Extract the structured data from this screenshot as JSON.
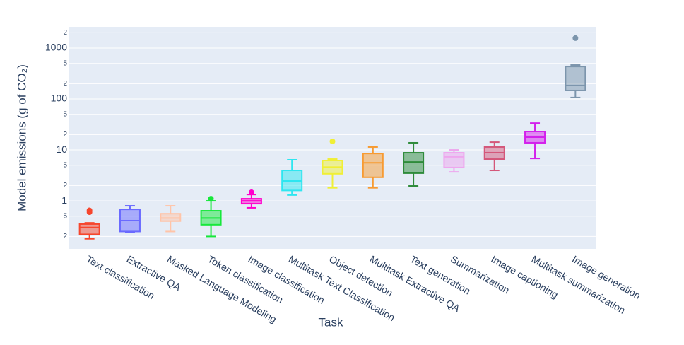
{
  "chart_data": {
    "type": "box",
    "log_y": true,
    "grid": true,
    "xlabel": "Task",
    "ylabel": "Model emissions (g of CO₂)",
    "ylim": [
      0.114,
      2610
    ],
    "yticks": [
      {
        "value": 0.2,
        "label": "2"
      },
      {
        "value": 0.5,
        "label": "5"
      },
      1,
      {
        "value": 2,
        "label": "2"
      },
      {
        "value": 5,
        "label": "5"
      },
      10,
      {
        "value": 20,
        "label": "2"
      },
      {
        "value": 50,
        "label": "5"
      },
      100,
      {
        "value": 200,
        "label": "2"
      },
      {
        "value": 500,
        "label": "5"
      },
      1000,
      {
        "value": 2000,
        "label": "2"
      }
    ],
    "categories": [
      "Text classification",
      "Extractive QA",
      "Masked Language Modeling",
      "Token classification",
      "Image classification",
      "Multitask Text Classification",
      "Object detection",
      "Multitask Extractive QA",
      "Text generation",
      "Summarization",
      "Image captioning",
      "Multitask summarization",
      "Image generation"
    ],
    "boxes": [
      {
        "min": 0.18,
        "q1": 0.22,
        "median": 0.3,
        "q3": 0.35,
        "max": 0.37,
        "outliers": [
          0.6,
          0.65
        ],
        "color": "#f6462d"
      },
      {
        "min": 0.24,
        "q1": 0.25,
        "median": 0.41,
        "q3": 0.68,
        "max": 0.8,
        "outliers": [],
        "color": "#6a6aff"
      },
      {
        "min": 0.25,
        "q1": 0.4,
        "median": 0.46,
        "q3": 0.56,
        "max": 0.8,
        "outliers": [],
        "color": "#ffc4a8"
      },
      {
        "min": 0.2,
        "q1": 0.34,
        "median": 0.46,
        "q3": 0.64,
        "max": 1.0,
        "outliers": [
          1.1
        ],
        "color": "#17e83b"
      },
      {
        "min": 0.73,
        "q1": 0.88,
        "median": 1.0,
        "q3": 1.1,
        "max": 1.33,
        "outliers": [
          1.47
        ],
        "color": "#ff00cc"
      },
      {
        "min": 1.3,
        "q1": 1.6,
        "median": 2.45,
        "q3": 3.96,
        "max": 6.4,
        "outliers": [],
        "color": "#2ee6f0"
      },
      {
        "min": 1.8,
        "q1": 3.4,
        "median": 4.6,
        "q3": 6.2,
        "max": 6.6,
        "outliers": [
          14.7
        ],
        "color": "#f0ef35"
      },
      {
        "min": 1.8,
        "q1": 2.9,
        "median": 5.6,
        "q3": 8.5,
        "max": 11.4,
        "outliers": [],
        "color": "#f79b32"
      },
      {
        "min": 1.96,
        "q1": 3.5,
        "median": 5.8,
        "q3": 8.8,
        "max": 13.8,
        "outliers": [],
        "color": "#2e8b3a"
      },
      {
        "min": 3.7,
        "q1": 4.5,
        "median": 7.3,
        "q3": 8.8,
        "max": 10,
        "outliers": [],
        "color": "#eea6ee"
      },
      {
        "min": 3.96,
        "q1": 6.6,
        "median": 8.8,
        "q3": 11.4,
        "max": 14.2,
        "outliers": [],
        "color": "#d4577a"
      },
      {
        "min": 6.8,
        "q1": 13.8,
        "median": 17.8,
        "q3": 23,
        "max": 33.6,
        "outliers": [],
        "color": "#d321ec"
      },
      {
        "min": 107,
        "q1": 147,
        "median": 184,
        "q3": 434,
        "max": 464,
        "outliers": [
          1570
        ],
        "color": "#7c95ac"
      }
    ]
  }
}
